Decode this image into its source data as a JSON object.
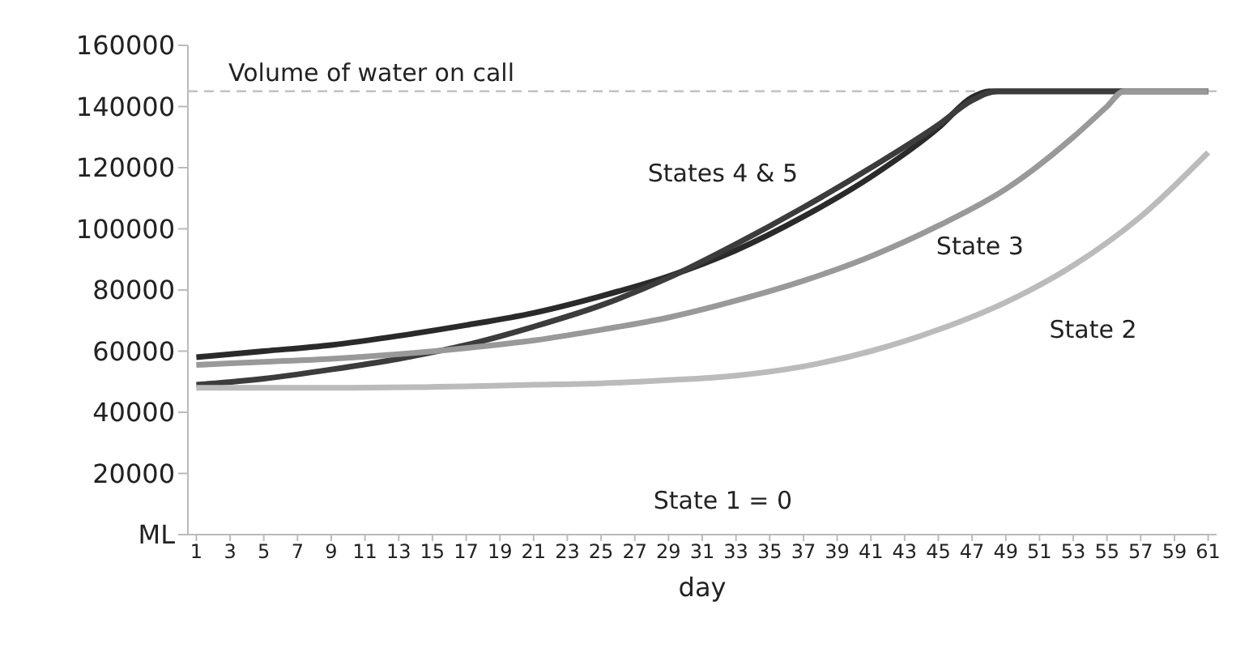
{
  "chart_data": {
    "type": "line",
    "xlabel": "day",
    "xlim": [
      0.5,
      61.5
    ],
    "xticks": [
      1,
      3,
      5,
      7,
      9,
      11,
      13,
      15,
      17,
      19,
      21,
      23,
      25,
      27,
      29,
      31,
      33,
      35,
      37,
      39,
      41,
      43,
      45,
      47,
      49,
      51,
      53,
      55,
      57,
      59,
      61
    ],
    "ylim": [
      0,
      160000
    ],
    "yticks": [
      {
        "value": 0,
        "label": "ML"
      },
      20000,
      40000,
      60000,
      80000,
      100000,
      120000,
      140000,
      160000
    ],
    "grid": false,
    "marker": "none",
    "line_style": "solid",
    "series": [
      {
        "color": "#2a2a2a",
        "x": [
          1,
          5,
          9,
          13,
          17,
          21,
          25,
          29,
          33,
          37,
          41,
          45,
          47,
          48,
          61
        ],
        "values": [
          58000,
          60000,
          62000,
          65000,
          68500,
          72500,
          78000,
          84500,
          93000,
          104000,
          117000,
          133000,
          143000,
          145000,
          145000
        ]
      },
      {
        "color": "#3c3c3c",
        "x": [
          1,
          5,
          9,
          13,
          17,
          21,
          25,
          29,
          33,
          37,
          41,
          45,
          47,
          48.5,
          61
        ],
        "values": [
          49000,
          51000,
          54000,
          57500,
          62000,
          68000,
          75000,
          84000,
          95000,
          107000,
          120000,
          134000,
          142000,
          145000,
          145000
        ]
      },
      {
        "color": "#999999",
        "x": [
          1,
          5,
          9,
          13,
          17,
          21,
          25,
          29,
          33,
          37,
          41,
          45,
          49,
          53,
          55,
          56,
          61
        ],
        "values": [
          55500,
          56500,
          57500,
          59000,
          61000,
          63500,
          67000,
          71000,
          76500,
          83000,
          91000,
          101000,
          113000,
          130000,
          140000,
          145000,
          145000
        ]
      },
      {
        "color": "#bbbbbb",
        "x": [
          1,
          9,
          17,
          21,
          25,
          29,
          33,
          37,
          41,
          45,
          49,
          53,
          57,
          61
        ],
        "values": [
          48000,
          48000,
          48500,
          49000,
          49500,
          50500,
          52000,
          55000,
          60000,
          67000,
          76000,
          88000,
          104000,
          125000
        ]
      }
    ],
    "ref_lines": [
      {
        "axis": "y",
        "value": 145000,
        "label": "Volume of water on call",
        "color": "#bbbbbb",
        "line_style": "dashed"
      }
    ],
    "annotations": [
      "States 4 & 5",
      "State 3",
      "State 2",
      "State 1 = 0"
    ]
  }
}
